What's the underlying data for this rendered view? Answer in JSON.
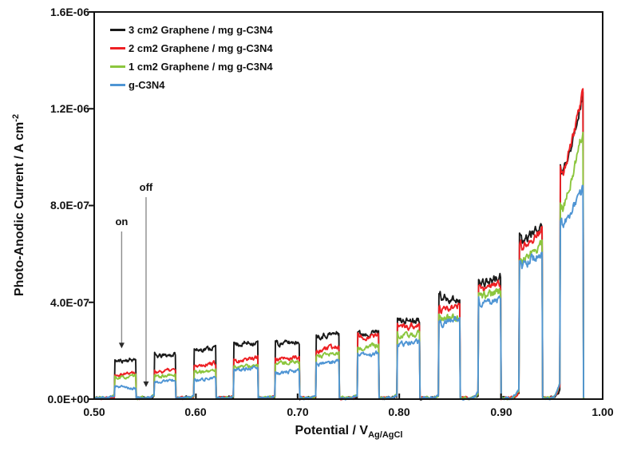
{
  "labels": {
    "y_main": "Photo-Anodic Current / A cm",
    "y_sup": "-2",
    "x_main": "Potential / V",
    "x_sub": "Ag/AgCl"
  },
  "chart_data": {
    "type": "line",
    "title": "",
    "xlabel": "Potential / V Ag/AgCl",
    "ylabel": "Photo-Anodic Current / A cm-2",
    "x_range_V": [
      0.5,
      1.0
    ],
    "y_range_A_cm2": [
      0,
      1.6e-06
    ],
    "x_ticks": [
      "0.50",
      "0.60",
      "0.70",
      "0.80",
      "0.90",
      "1.00"
    ],
    "y_ticks": [
      "0.0E+00",
      "4.0E-07",
      "8.0E-07",
      "1.2E-06",
      "1.6E-06"
    ],
    "grid": false,
    "legend_position": "top-left-inside",
    "series": [
      {
        "key": "g3",
        "label": "3 cm2 Graphene / mg g-C3N4",
        "color": "#1a1a1a"
      },
      {
        "key": "g2",
        "label": "2 cm2 Graphene / mg g-C3N4",
        "color": "#ee2024"
      },
      {
        "key": "g1",
        "label": "1 cm2 Graphene / mg g-C3N4",
        "color": "#8cc63e"
      },
      {
        "key": "gcn",
        "label": "g-C3N4",
        "color": "#4f95d4"
      }
    ],
    "unit_note": "chopped-light linear sweep; plateau currents listed as [start,end] in 1e-7 A cm-2 for each light-on pulse",
    "baseline_e7": 0.05,
    "sweep_end_v": 0.982,
    "light_pulses": [
      {
        "v_on": 0.52,
        "v_off": 0.541,
        "onset_e7": 0.1,
        "i_on": {
          "g3": [
            1.55,
            1.65
          ],
          "g2": [
            1.02,
            1.1
          ],
          "g1": [
            0.85,
            0.95
          ],
          "gcn": [
            0.55,
            0.42
          ]
        }
      },
      {
        "v_on": 0.559,
        "v_off": 0.58,
        "onset_e7": 0.1,
        "i_on": {
          "g3": [
            1.75,
            1.85
          ],
          "g2": [
            1.12,
            1.22
          ],
          "g1": [
            0.92,
            1.0
          ],
          "gcn": [
            0.7,
            0.78
          ]
        }
      },
      {
        "v_on": 0.598,
        "v_off": 0.62,
        "onset_e7": 0.1,
        "i_on": {
          "g3": [
            2.0,
            2.15
          ],
          "g2": [
            1.38,
            1.5
          ],
          "g1": [
            1.1,
            1.2
          ],
          "gcn": [
            0.78,
            0.88
          ]
        }
      },
      {
        "v_on": 0.637,
        "v_off": 0.661,
        "onset_e7": 0.1,
        "i_on": {
          "g3": [
            2.25,
            2.35
          ],
          "g2": [
            1.55,
            1.75
          ],
          "g1": [
            1.32,
            1.38
          ],
          "gcn": [
            1.18,
            1.28
          ]
        }
      },
      {
        "v_on": 0.678,
        "v_off": 0.702,
        "onset_e7": 0.1,
        "i_on": {
          "g3": [
            2.28,
            2.38
          ],
          "g2": [
            1.62,
            1.72
          ],
          "g1": [
            1.45,
            1.58
          ],
          "gcn": [
            1.05,
            1.18
          ]
        }
      },
      {
        "v_on": 0.718,
        "v_off": 0.741,
        "onset_e7": 0.1,
        "i_on": {
          "g3": [
            2.6,
            2.72
          ],
          "g2": [
            1.95,
            2.2
          ],
          "g1": [
            1.72,
            1.9
          ],
          "gcn": [
            1.42,
            1.58
          ]
        }
      },
      {
        "v_on": 0.759,
        "v_off": 0.78,
        "onset_e7": 0.1,
        "i_on": {
          "g3": [
            2.68,
            2.78
          ],
          "g2": [
            2.52,
            2.68
          ],
          "g1": [
            2.05,
            2.25
          ],
          "gcn": [
            1.8,
            1.92
          ]
        }
      },
      {
        "v_on": 0.798,
        "v_off": 0.82,
        "onset_e7": 0.12,
        "i_on": {
          "g3": [
            3.2,
            3.32
          ],
          "g2": [
            2.92,
            3.06
          ],
          "g1": [
            2.55,
            2.72
          ],
          "gcn": [
            2.26,
            2.38
          ]
        }
      },
      {
        "v_on": 0.839,
        "v_off": 0.86,
        "onset_e7": 0.15,
        "i_on": {
          "g3": [
            4.22,
            4.1
          ],
          "g2": [
            3.6,
            3.92
          ],
          "g1": [
            3.3,
            3.42
          ],
          "gcn": [
            3.1,
            3.3
          ]
        }
      },
      {
        "v_on": 0.878,
        "v_off": 0.9,
        "onset_e7": 0.25,
        "i_on": {
          "g3": [
            4.8,
            5.02
          ],
          "g2": [
            4.5,
            4.72
          ],
          "g1": [
            4.2,
            4.42
          ],
          "gcn": [
            3.9,
            4.12
          ]
        }
      },
      {
        "v_on": 0.918,
        "v_off": 0.941,
        "onset_e7": 0.4,
        "i_on": {
          "g3": [
            6.4,
            7.2
          ],
          "g2": [
            6.2,
            7.05
          ],
          "g1": [
            5.6,
            6.45
          ],
          "gcn": [
            5.4,
            6.1
          ]
        }
      },
      {
        "v_on": 0.958,
        "v_off": 0.981,
        "onset_e7": 0.7,
        "i_on": {
          "g3": [
            9.1,
            12.7
          ],
          "g2": [
            9.0,
            12.8
          ],
          "g1": [
            7.6,
            11.2
          ],
          "gcn": [
            7.0,
            8.7
          ]
        }
      }
    ],
    "annotations": [
      {
        "text": "on",
        "v": 0.527,
        "points_to_e7": 2.1
      },
      {
        "text": "off",
        "v": 0.551,
        "points_to_e7": 0.5
      }
    ]
  }
}
